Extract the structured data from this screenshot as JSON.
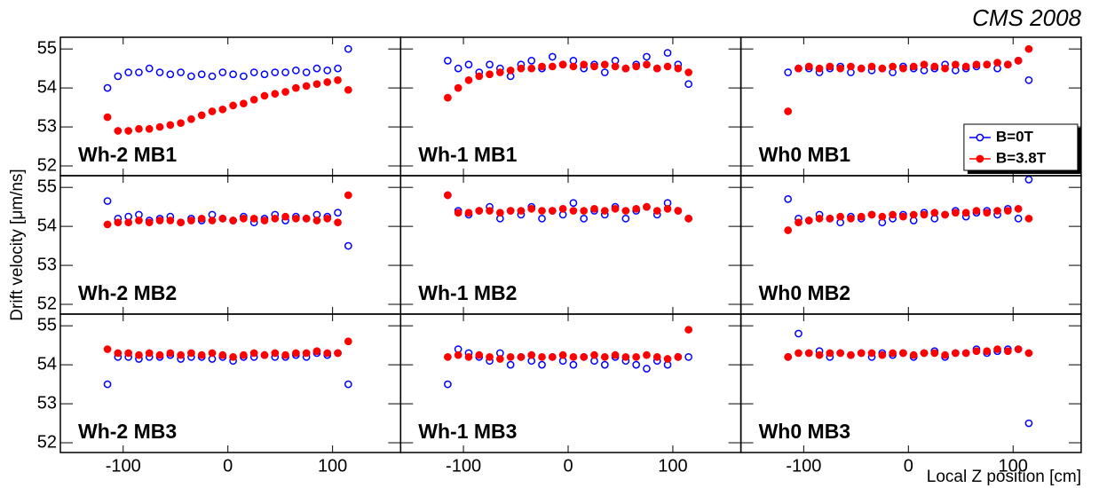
{
  "figure": {
    "title": "CMS 2008",
    "xlabel": "Local Z position [cm]",
    "ylabel": "Drift velocity  [μm/ns]"
  },
  "chart_data": [
    {
      "type": "scatter",
      "label": "Wh-2 MB1",
      "legend": null,
      "xlim": [
        -160,
        165
      ],
      "ylim": [
        51.75,
        55.3
      ],
      "xticks": [
        -100,
        0,
        100
      ],
      "yticks": [
        52,
        53,
        54,
        55
      ],
      "x": [
        -115,
        -105,
        -95,
        -85,
        -75,
        -65,
        -55,
        -45,
        -35,
        -25,
        -15,
        -5,
        5,
        15,
        25,
        35,
        45,
        55,
        65,
        75,
        85,
        95,
        105,
        115
      ],
      "series": [
        {
          "name": "B=0T",
          "color": "#0000ff",
          "marker": "open",
          "values": [
            54.0,
            54.3,
            54.4,
            54.4,
            54.5,
            54.4,
            54.35,
            54.4,
            54.3,
            54.35,
            54.3,
            54.4,
            54.35,
            54.3,
            54.4,
            54.35,
            54.4,
            54.4,
            54.45,
            54.4,
            54.5,
            54.45,
            54.5,
            55.0
          ]
        },
        {
          "name": "B=3.8T",
          "color": "#ff0000",
          "marker": "filled",
          "values": [
            53.25,
            52.9,
            52.9,
            52.95,
            52.95,
            53.0,
            53.05,
            53.1,
            53.2,
            53.3,
            53.4,
            53.45,
            53.55,
            53.6,
            53.7,
            53.8,
            53.85,
            53.9,
            54.0,
            54.05,
            54.1,
            54.15,
            54.2,
            53.95
          ]
        }
      ]
    },
    {
      "type": "scatter",
      "label": "Wh-1 MB1",
      "legend": null,
      "xlim": [
        -160,
        165
      ],
      "ylim": [
        51.75,
        55.3
      ],
      "xticks": [
        -100,
        0,
        100
      ],
      "yticks": [
        52,
        53,
        54,
        55
      ],
      "x": [
        -115,
        -105,
        -95,
        -85,
        -75,
        -65,
        -55,
        -45,
        -35,
        -25,
        -15,
        -5,
        5,
        15,
        25,
        35,
        45,
        55,
        65,
        75,
        85,
        95,
        105,
        115
      ],
      "series": [
        {
          "name": "B=0T",
          "color": "#0000ff",
          "marker": "open",
          "values": [
            54.7,
            54.5,
            54.6,
            54.4,
            54.6,
            54.5,
            54.3,
            54.6,
            54.7,
            54.5,
            54.8,
            54.6,
            54.7,
            54.5,
            54.6,
            54.4,
            54.7,
            54.5,
            54.6,
            54.8,
            54.5,
            54.9,
            54.6,
            54.1
          ]
        },
        {
          "name": "B=3.8T",
          "color": "#ff0000",
          "marker": "filled",
          "values": [
            53.75,
            54.0,
            54.2,
            54.3,
            54.35,
            54.4,
            54.45,
            54.5,
            54.5,
            54.55,
            54.55,
            54.6,
            54.55,
            54.6,
            54.55,
            54.6,
            54.55,
            54.5,
            54.55,
            54.6,
            54.5,
            54.55,
            54.5,
            54.4
          ]
        }
      ]
    },
    {
      "type": "scatter",
      "label": "Wh0 MB1",
      "legend": "right",
      "xlim": [
        -160,
        165
      ],
      "ylim": [
        51.75,
        55.3
      ],
      "xticks": [
        -100,
        0,
        100
      ],
      "yticks": [
        52,
        53,
        54,
        55
      ],
      "x": [
        -115,
        -105,
        -95,
        -85,
        -75,
        -65,
        -55,
        -45,
        -35,
        -25,
        -15,
        -5,
        5,
        15,
        25,
        35,
        45,
        55,
        65,
        75,
        85,
        95,
        105,
        115
      ],
      "series": [
        {
          "name": "B=0T",
          "color": "#0000ff",
          "marker": "open",
          "values": [
            54.4,
            54.5,
            54.5,
            54.4,
            54.5,
            54.55,
            54.4,
            54.5,
            54.45,
            54.5,
            54.4,
            54.55,
            54.5,
            54.45,
            54.5,
            54.6,
            54.45,
            54.5,
            54.55,
            54.6,
            54.5,
            54.6,
            54.7,
            54.2
          ]
        },
        {
          "name": "B=3.8T",
          "color": "#ff0000",
          "marker": "filled",
          "values": [
            53.4,
            54.5,
            54.55,
            54.5,
            54.55,
            54.5,
            54.55,
            54.5,
            54.55,
            54.5,
            54.55,
            54.5,
            54.55,
            54.6,
            54.55,
            54.5,
            54.6,
            54.55,
            54.6,
            54.6,
            54.65,
            54.6,
            54.7,
            55.0
          ]
        }
      ]
    },
    {
      "type": "scatter",
      "label": "Wh-2 MB2",
      "legend": null,
      "xlim": [
        -160,
        165
      ],
      "ylim": [
        51.75,
        55.3
      ],
      "xticks": [
        -100,
        0,
        100
      ],
      "yticks": [
        52,
        53,
        54,
        55
      ],
      "x": [
        -115,
        -105,
        -95,
        -85,
        -75,
        -65,
        -55,
        -45,
        -35,
        -25,
        -15,
        -5,
        5,
        15,
        25,
        35,
        45,
        55,
        65,
        75,
        85,
        95,
        105,
        115
      ],
      "series": [
        {
          "name": "B=0T",
          "color": "#0000ff",
          "marker": "open",
          "values": [
            54.65,
            54.2,
            54.25,
            54.3,
            54.15,
            54.2,
            54.25,
            54.1,
            54.2,
            54.15,
            54.3,
            54.2,
            54.15,
            54.25,
            54.1,
            54.2,
            54.3,
            54.15,
            54.25,
            54.2,
            54.3,
            54.25,
            54.35,
            53.5
          ]
        },
        {
          "name": "B=3.8T",
          "color": "#ff0000",
          "marker": "filled",
          "values": [
            54.05,
            54.1,
            54.1,
            54.15,
            54.1,
            54.15,
            54.15,
            54.1,
            54.15,
            54.2,
            54.15,
            54.2,
            54.15,
            54.2,
            54.2,
            54.15,
            54.2,
            54.25,
            54.2,
            54.2,
            54.15,
            54.2,
            54.1,
            54.8
          ]
        }
      ]
    },
    {
      "type": "scatter",
      "label": "Wh-1 MB2",
      "legend": null,
      "xlim": [
        -160,
        165
      ],
      "ylim": [
        51.75,
        55.3
      ],
      "xticks": [
        -100,
        0,
        100
      ],
      "yticks": [
        52,
        53,
        54,
        55
      ],
      "x": [
        -115,
        -105,
        -95,
        -85,
        -75,
        -65,
        -55,
        -45,
        -35,
        -25,
        -15,
        -5,
        5,
        15,
        25,
        35,
        45,
        55,
        65,
        75,
        85,
        95,
        105,
        115
      ],
      "series": [
        {
          "name": "B=0T",
          "color": "#0000ff",
          "marker": "open",
          "values": [
            54.8,
            54.4,
            54.3,
            54.4,
            54.5,
            54.2,
            54.4,
            54.3,
            54.5,
            54.2,
            54.4,
            54.3,
            54.6,
            54.2,
            54.4,
            54.3,
            54.5,
            54.2,
            54.4,
            54.5,
            54.3,
            54.6,
            54.4,
            54.2
          ]
        },
        {
          "name": "B=3.8T",
          "color": "#ff0000",
          "marker": "filled",
          "values": [
            54.8,
            54.35,
            54.35,
            54.4,
            54.4,
            54.35,
            54.4,
            54.4,
            54.45,
            54.4,
            54.4,
            54.45,
            54.4,
            54.4,
            54.45,
            54.4,
            54.45,
            54.4,
            54.45,
            54.5,
            54.4,
            54.45,
            54.4,
            54.2
          ]
        }
      ]
    },
    {
      "type": "scatter",
      "label": "Wh0 MB2",
      "legend": null,
      "xlim": [
        -160,
        165
      ],
      "ylim": [
        51.75,
        55.3
      ],
      "xticks": [
        -100,
        0,
        100
      ],
      "yticks": [
        52,
        53,
        54,
        55
      ],
      "x": [
        -115,
        -105,
        -95,
        -85,
        -75,
        -65,
        -55,
        -45,
        -35,
        -25,
        -15,
        -5,
        5,
        15,
        25,
        35,
        45,
        55,
        65,
        75,
        85,
        95,
        105,
        115
      ],
      "series": [
        {
          "name": "B=0T",
          "color": "#0000ff",
          "marker": "open",
          "values": [
            54.7,
            54.2,
            54.15,
            54.3,
            54.2,
            54.1,
            54.25,
            54.2,
            54.3,
            54.1,
            54.2,
            54.3,
            54.15,
            54.35,
            54.2,
            54.3,
            54.4,
            54.25,
            54.35,
            54.4,
            54.3,
            54.45,
            54.2,
            55.2
          ]
        },
        {
          "name": "B=3.8T",
          "color": "#ff0000",
          "marker": "filled",
          "values": [
            53.9,
            54.1,
            54.15,
            54.2,
            54.2,
            54.25,
            54.2,
            54.25,
            54.3,
            54.25,
            54.3,
            54.25,
            54.3,
            54.3,
            54.35,
            54.3,
            54.35,
            54.35,
            54.4,
            54.35,
            54.4,
            54.4,
            54.45,
            54.2
          ]
        }
      ]
    },
    {
      "type": "scatter",
      "label": "Wh-2 MB3",
      "legend": null,
      "xlim": [
        -160,
        165
      ],
      "ylim": [
        51.75,
        55.3
      ],
      "xticks": [
        -100,
        0,
        100
      ],
      "yticks": [
        52,
        53,
        54,
        55
      ],
      "x": [
        -115,
        -105,
        -95,
        -85,
        -75,
        -65,
        -55,
        -45,
        -35,
        -25,
        -15,
        -5,
        5,
        15,
        25,
        35,
        45,
        55,
        65,
        75,
        85,
        95,
        105,
        115
      ],
      "series": [
        {
          "name": "B=0T",
          "color": "#0000ff",
          "marker": "open",
          "values": [
            53.5,
            54.2,
            54.2,
            54.15,
            54.2,
            54.2,
            54.25,
            54.15,
            54.2,
            54.2,
            54.15,
            54.2,
            54.1,
            54.2,
            54.2,
            54.25,
            54.2,
            54.2,
            54.25,
            54.2,
            54.3,
            54.25,
            54.3,
            53.5
          ]
        },
        {
          "name": "B=3.8T",
          "color": "#ff0000",
          "marker": "filled",
          "values": [
            54.4,
            54.3,
            54.3,
            54.25,
            54.3,
            54.25,
            54.3,
            54.25,
            54.3,
            54.25,
            54.3,
            54.25,
            54.2,
            54.25,
            54.3,
            54.25,
            54.3,
            54.25,
            54.3,
            54.3,
            54.35,
            54.3,
            54.3,
            54.6
          ]
        }
      ]
    },
    {
      "type": "scatter",
      "label": "Wh-1 MB3",
      "legend": null,
      "xlim": [
        -160,
        165
      ],
      "ylim": [
        51.75,
        55.3
      ],
      "xticks": [
        -100,
        0,
        100
      ],
      "yticks": [
        52,
        53,
        54,
        55
      ],
      "x": [
        -115,
        -105,
        -95,
        -85,
        -75,
        -65,
        -55,
        -45,
        -35,
        -25,
        -15,
        -5,
        5,
        15,
        25,
        35,
        45,
        55,
        65,
        75,
        85,
        95,
        105,
        115
      ],
      "series": [
        {
          "name": "B=0T",
          "color": "#0000ff",
          "marker": "open",
          "values": [
            53.5,
            54.4,
            54.3,
            54.2,
            54.1,
            54.3,
            54.0,
            54.2,
            54.1,
            54.0,
            54.2,
            54.1,
            54.0,
            54.2,
            54.1,
            54.0,
            54.2,
            54.1,
            54.0,
            53.9,
            54.1,
            54.0,
            54.2,
            54.2
          ]
        },
        {
          "name": "B=3.8T",
          "color": "#ff0000",
          "marker": "filled",
          "values": [
            54.2,
            54.25,
            54.2,
            54.25,
            54.2,
            54.15,
            54.2,
            54.2,
            54.25,
            54.2,
            54.2,
            54.25,
            54.2,
            54.2,
            54.25,
            54.2,
            54.25,
            54.2,
            54.2,
            54.25,
            54.2,
            54.15,
            54.2,
            54.9
          ]
        }
      ]
    },
    {
      "type": "scatter",
      "label": "Wh0 MB3",
      "legend": null,
      "xlim": [
        -160,
        165
      ],
      "ylim": [
        51.75,
        55.3
      ],
      "xticks": [
        -100,
        0,
        100
      ],
      "yticks": [
        52,
        53,
        54,
        55
      ],
      "x": [
        -115,
        -105,
        -95,
        -85,
        -75,
        -65,
        -55,
        -45,
        -35,
        -25,
        -15,
        -5,
        5,
        15,
        25,
        35,
        45,
        55,
        65,
        75,
        85,
        95,
        105,
        115
      ],
      "series": [
        {
          "name": "B=0T",
          "color": "#0000ff",
          "marker": "open",
          "values": [
            54.2,
            54.8,
            54.3,
            54.35,
            54.2,
            54.3,
            54.25,
            54.3,
            54.2,
            54.3,
            54.25,
            54.3,
            54.2,
            54.3,
            54.35,
            54.2,
            54.3,
            54.3,
            54.4,
            54.3,
            54.35,
            54.4,
            54.4,
            52.5
          ]
        },
        {
          "name": "B=3.8T",
          "color": "#ff0000",
          "marker": "filled",
          "values": [
            54.2,
            54.3,
            54.3,
            54.25,
            54.3,
            54.3,
            54.25,
            54.3,
            54.3,
            54.25,
            54.3,
            54.3,
            54.25,
            54.3,
            54.3,
            54.25,
            54.3,
            54.3,
            54.35,
            54.35,
            54.4,
            54.35,
            54.4,
            54.3
          ]
        }
      ]
    }
  ]
}
